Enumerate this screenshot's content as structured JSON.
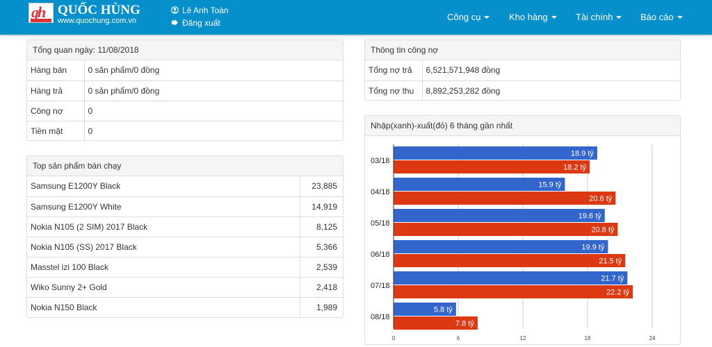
{
  "header": {
    "brand": "QUỐC HÙNG",
    "logo_text": "gh",
    "website": "www.quochung.com.vn",
    "user_name": "Lê Anh Toàn",
    "logout": "Đăng xuất",
    "menu": [
      {
        "label": "Công cụ"
      },
      {
        "label": "Kho hàng"
      },
      {
        "label": "Tài chính"
      },
      {
        "label": "Báo cáo"
      }
    ]
  },
  "overview": {
    "title": "Tổng quan ngày: 11/08/2018",
    "rows": [
      {
        "label": "Hàng bán",
        "value": "0 sản phẩm/0 đồng"
      },
      {
        "label": "Hàng trả",
        "value": "0 sản phẩm/0 đồng"
      },
      {
        "label": "Công nợ",
        "value": "0"
      },
      {
        "label": "Tiền mặt",
        "value": "0"
      }
    ]
  },
  "top_products": {
    "title": "Top sản phẩm bán chạy",
    "rows": [
      {
        "name": "Samsung E1200Y Black",
        "qty": "23,885"
      },
      {
        "name": "Samsung E1200Y White",
        "qty": "14,919"
      },
      {
        "name": "Nokia N105 (2 SIM) 2017 Black",
        "qty": "8,125"
      },
      {
        "name": "Nokia N105 (SS) 2017 Black",
        "qty": "5,366"
      },
      {
        "name": "Masstel izi 100 Black",
        "qty": "2,539"
      },
      {
        "name": "Wiko Sunny 2+ Gold",
        "qty": "2,418"
      },
      {
        "name": "Nokia N150 Black",
        "qty": "1,989"
      }
    ]
  },
  "debt": {
    "title": "Thông tin công nợ",
    "rows": [
      {
        "label": "Tổng nợ trả",
        "value": "6,521,571,948 đồng"
      },
      {
        "label": "Tổng nợ thu",
        "value": "8,892,253,282 đồng"
      }
    ]
  },
  "chart_panel_title": "Nhập(xanh)-xuất(đỏ) 6 tháng gần nhất",
  "chart_data": {
    "type": "bar",
    "orientation": "horizontal",
    "categories": [
      "03/18",
      "04/18",
      "05/18",
      "06/18",
      "07/18",
      "08/18"
    ],
    "series": [
      {
        "name": "Nhập",
        "color": "#3366cc",
        "values": [
          18.9,
          15.9,
          19.6,
          19.9,
          21.7,
          5.8
        ],
        "labels": [
          "18.9 tỷ",
          "15.9 tỷ",
          "19.6 tỷ",
          "19.9 tỷ",
          "21.7 tỷ",
          "5.8 tỷ"
        ]
      },
      {
        "name": "Xuất",
        "color": "#dc3912",
        "values": [
          18.2,
          20.6,
          20.8,
          21.5,
          22.2,
          7.8
        ],
        "labels": [
          "18.2 tỷ",
          "20.6 tỷ",
          "20.8 tỷ",
          "21.5 tỷ",
          "22.2 tỷ",
          "7.8 tỷ"
        ]
      }
    ],
    "xlim": [
      0,
      24
    ],
    "xticks": [
      "0",
      "6",
      "12",
      "18",
      "24"
    ],
    "grid": true
  }
}
